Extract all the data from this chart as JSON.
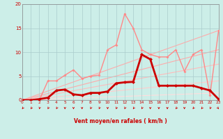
{
  "xlabel": "Vent moyen/en rafales ( km/h )",
  "background_color": "#cceee8",
  "grid_color": "#aacccc",
  "xlim": [
    0,
    23
  ],
  "ylim": [
    0,
    20
  ],
  "xticks": [
    0,
    1,
    2,
    3,
    4,
    5,
    6,
    7,
    8,
    9,
    10,
    11,
    12,
    13,
    14,
    15,
    16,
    17,
    18,
    19,
    20,
    21,
    22,
    23
  ],
  "yticks": [
    0,
    5,
    10,
    15,
    20
  ],
  "trend_lines": [
    {
      "x": [
        0,
        23
      ],
      "y": [
        0,
        14.5
      ],
      "color": "#ffaaaa",
      "lw": 0.8
    },
    {
      "x": [
        0,
        23
      ],
      "y": [
        0,
        10.5
      ],
      "color": "#ffaaaa",
      "lw": 0.8
    },
    {
      "x": [
        0,
        23
      ],
      "y": [
        0,
        7.5
      ],
      "color": "#ffbbbb",
      "lw": 0.8
    },
    {
      "x": [
        0,
        23
      ],
      "y": [
        0,
        4.0
      ],
      "color": "#ffcccc",
      "lw": 0.8
    },
    {
      "x": [
        0,
        23
      ],
      "y": [
        0,
        1.5
      ],
      "color": "#ffdddd",
      "lw": 0.8
    }
  ],
  "rafales_x": [
    0,
    1,
    2,
    3,
    4,
    5,
    6,
    7,
    8,
    9,
    10,
    11,
    12,
    13,
    14,
    15,
    16,
    17,
    18,
    19,
    20,
    21,
    22,
    23
  ],
  "rafales_y": [
    0,
    0,
    0,
    4,
    4,
    5.2,
    6.3,
    4.5,
    5.0,
    5.2,
    10.5,
    11.5,
    18.0,
    15.0,
    10.5,
    9.5,
    9.0,
    9.0,
    10.5,
    6.0,
    9.5,
    10.5,
    1.0,
    14.5
  ],
  "rafales_color": "#ff8888",
  "rafales_lw": 1.0,
  "rafales_marker": "D",
  "rafales_ms": 2.0,
  "moyen_x": [
    0,
    1,
    2,
    3,
    4,
    5,
    6,
    7,
    8,
    9,
    10,
    11,
    12,
    13,
    14,
    15,
    16,
    17,
    18,
    19,
    20,
    21,
    22,
    23
  ],
  "moyen_y": [
    0,
    0,
    0.2,
    0.5,
    2.0,
    2.2,
    1.2,
    1.0,
    1.5,
    1.5,
    1.8,
    3.5,
    3.7,
    3.8,
    9.5,
    8.5,
    3.0,
    3.0,
    3.0,
    3.0,
    3.0,
    2.5,
    2.0,
    0.2
  ],
  "moyen_color": "#cc0000",
  "moyen_lw": 2.0,
  "moyen_marker": "D",
  "moyen_ms": 2.5,
  "flat_line_y": 0,
  "flat_color": "#ff4444",
  "flat_lw": 0.8,
  "arrows_x": [
    0,
    1,
    2,
    3,
    4,
    5,
    6,
    7,
    8,
    9,
    10,
    11,
    12,
    13,
    14,
    15,
    16,
    17,
    18,
    19,
    20,
    21,
    22,
    23
  ],
  "arrows_angle_deg": [
    225,
    225,
    200,
    215,
    215,
    180,
    180,
    180,
    210,
    210,
    180,
    210,
    210,
    225,
    210,
    180,
    180,
    180,
    225,
    180,
    225,
    225,
    210,
    135
  ]
}
